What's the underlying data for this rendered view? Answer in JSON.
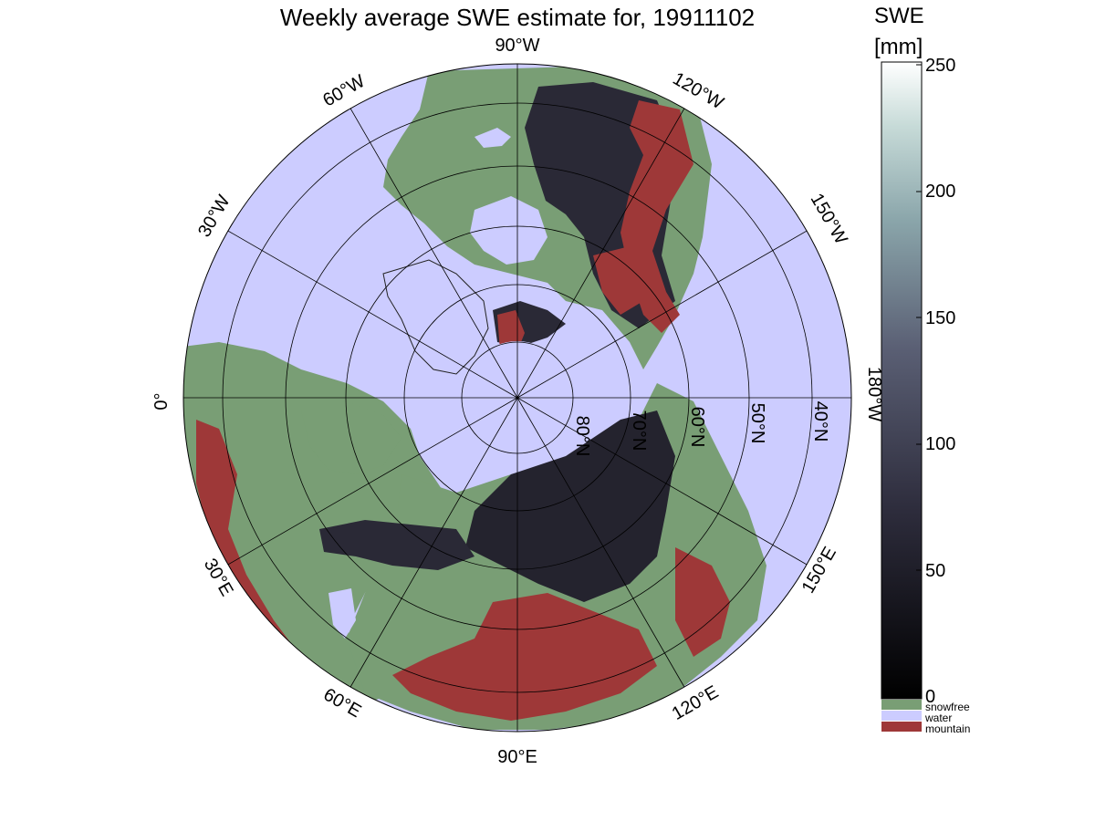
{
  "title": "Weekly average SWE estimate for, 19911102",
  "colorbar": {
    "title_line1": "SWE",
    "title_line2": "[mm]",
    "ticks": [
      "250",
      "200",
      "150",
      "100",
      "50",
      "0"
    ],
    "range": [
      0,
      250
    ]
  },
  "legend": [
    {
      "label": "snowfree",
      "color": "#799e75"
    },
    {
      "label": "water",
      "color": "#ccccff"
    },
    {
      "label": "mountain",
      "color": "#9e3838"
    }
  ],
  "map": {
    "projection": "north polar stereographic",
    "longitude_labels": [
      "90°W",
      "60°W",
      "120°W",
      "30°W",
      "150°W",
      "0°",
      "180°W",
      "30°E",
      "150°E",
      "60°E",
      "120°E",
      "90°E"
    ],
    "latitude_labels": [
      "80°N",
      "70°N",
      "60°N",
      "50°N",
      "40°N"
    ],
    "colors": {
      "land": "#799e75",
      "water": "#ccccff",
      "mountain": "#9e3838",
      "snow_dark": "#24232e",
      "snow_mid": "#3d3c4c"
    }
  }
}
